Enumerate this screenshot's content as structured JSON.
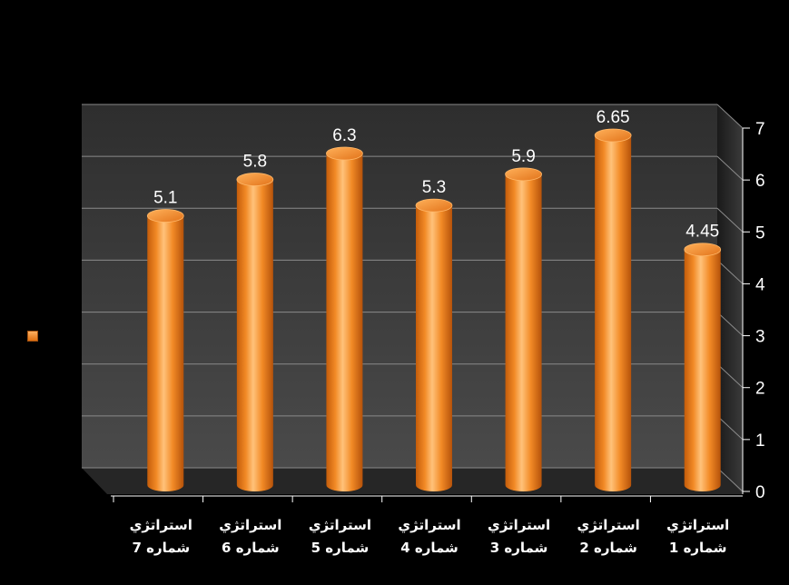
{
  "chart_data": {
    "type": "bar",
    "categories": [
      [
        "استراتژي",
        "شماره 7"
      ],
      [
        "استراتژي",
        "شماره 6"
      ],
      [
        "استراتژي",
        "شماره 5"
      ],
      [
        "استراتژي",
        "شماره 4"
      ],
      [
        "استراتژي",
        "شماره 3"
      ],
      [
        "استراتژي",
        "شماره 2"
      ],
      [
        "استراتژي",
        "شماره 1"
      ]
    ],
    "values": [
      5.1,
      5.8,
      6.3,
      5.3,
      5.9,
      6.65,
      4.45
    ],
    "data_labels": [
      "5.1",
      "5.8",
      "6.3",
      "5.3",
      "5.9",
      "6.65",
      "4.45"
    ],
    "y_ticks": [
      "0",
      "1",
      "2",
      "3",
      "4",
      "5",
      "6",
      "7"
    ],
    "ylim": [
      0,
      7
    ],
    "y_axis_side": "right",
    "grid": true,
    "legend": "left",
    "style": "3d-cylinder",
    "colors": {
      "bar": "#f28a26",
      "bar_light": "#ffc27a",
      "bar_dark": "#c05a0a",
      "background": "#000000",
      "wall": "#3c3c3c",
      "floor": "#2a2a2a",
      "grid": "#8a8a8a",
      "text": "#ffffff"
    }
  }
}
